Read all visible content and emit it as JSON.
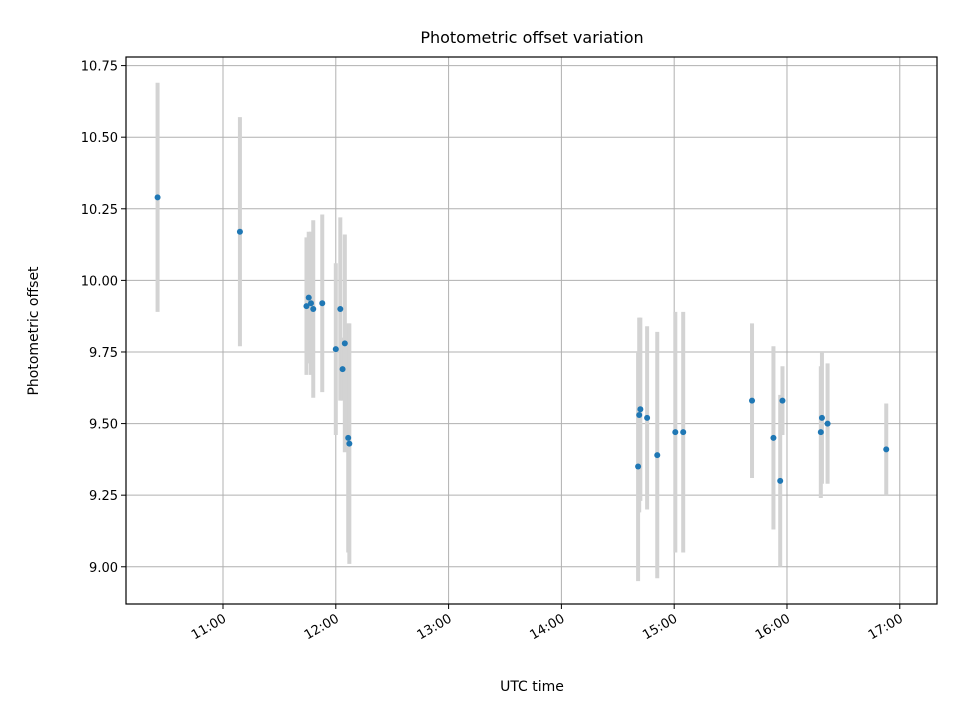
{
  "chart_data": {
    "type": "scatter",
    "title": "Photometric offset variation",
    "xlabel": "UTC time",
    "ylabel": "Photometric offset",
    "x_unit": "hours (UTC, decimal)",
    "xlim": [
      10.14,
      17.33
    ],
    "ylim": [
      8.87,
      10.78
    ],
    "x_ticks": [
      {
        "value": 11,
        "label": "11:00"
      },
      {
        "value": 12,
        "label": "12:00"
      },
      {
        "value": 13,
        "label": "13:00"
      },
      {
        "value": 14,
        "label": "14:00"
      },
      {
        "value": 15,
        "label": "15:00"
      },
      {
        "value": 16,
        "label": "16:00"
      },
      {
        "value": 17,
        "label": "17:00"
      }
    ],
    "y_ticks": [
      {
        "value": 9.0,
        "label": "9.00"
      },
      {
        "value": 9.25,
        "label": "9.25"
      },
      {
        "value": 9.5,
        "label": "9.50"
      },
      {
        "value": 9.75,
        "label": "9.75"
      },
      {
        "value": 10.0,
        "label": "10.00"
      },
      {
        "value": 10.25,
        "label": "10.25"
      },
      {
        "value": 10.5,
        "label": "10.50"
      },
      {
        "value": 10.75,
        "label": "10.75"
      }
    ],
    "grid": true,
    "legend": "none",
    "marker_color": "#1f77b4",
    "errorbar_color": "#d3d3d3",
    "points": [
      {
        "x": 10.42,
        "y": 10.29,
        "err": 0.4
      },
      {
        "x": 11.15,
        "y": 10.17,
        "err": 0.4
      },
      {
        "x": 11.74,
        "y": 9.91,
        "err": 0.24
      },
      {
        "x": 11.76,
        "y": 9.94,
        "err": 0.23
      },
      {
        "x": 11.78,
        "y": 9.92,
        "err": 0.25
      },
      {
        "x": 11.8,
        "y": 9.9,
        "err": 0.31
      },
      {
        "x": 11.88,
        "y": 9.92,
        "err": 0.31
      },
      {
        "x": 12.0,
        "y": 9.76,
        "err": 0.3
      },
      {
        "x": 12.04,
        "y": 9.9,
        "err": 0.32
      },
      {
        "x": 12.06,
        "y": 9.69,
        "err": 0.11
      },
      {
        "x": 12.08,
        "y": 9.78,
        "err": 0.38
      },
      {
        "x": 12.11,
        "y": 9.45,
        "err": 0.4
      },
      {
        "x": 12.12,
        "y": 9.43,
        "err": 0.42
      },
      {
        "x": 14.68,
        "y": 9.35,
        "err": 0.4
      },
      {
        "x": 14.69,
        "y": 9.53,
        "err": 0.34
      },
      {
        "x": 14.7,
        "y": 9.55,
        "err": 0.32
      },
      {
        "x": 14.76,
        "y": 9.52,
        "err": 0.32
      },
      {
        "x": 14.85,
        "y": 9.39,
        "err": 0.43
      },
      {
        "x": 15.01,
        "y": 9.47,
        "err": 0.42
      },
      {
        "x": 15.08,
        "y": 9.47,
        "err": 0.42
      },
      {
        "x": 15.69,
        "y": 9.58,
        "err": 0.27
      },
      {
        "x": 15.88,
        "y": 9.45,
        "err": 0.32
      },
      {
        "x": 15.94,
        "y": 9.3,
        "err": 0.3
      },
      {
        "x": 15.96,
        "y": 9.58,
        "err": 0.12
      },
      {
        "x": 16.3,
        "y": 9.47,
        "err": 0.23
      },
      {
        "x": 16.31,
        "y": 9.52,
        "err": 0.23
      },
      {
        "x": 16.36,
        "y": 9.5,
        "err": 0.21
      },
      {
        "x": 16.88,
        "y": 9.41,
        "err": 0.16
      }
    ]
  }
}
